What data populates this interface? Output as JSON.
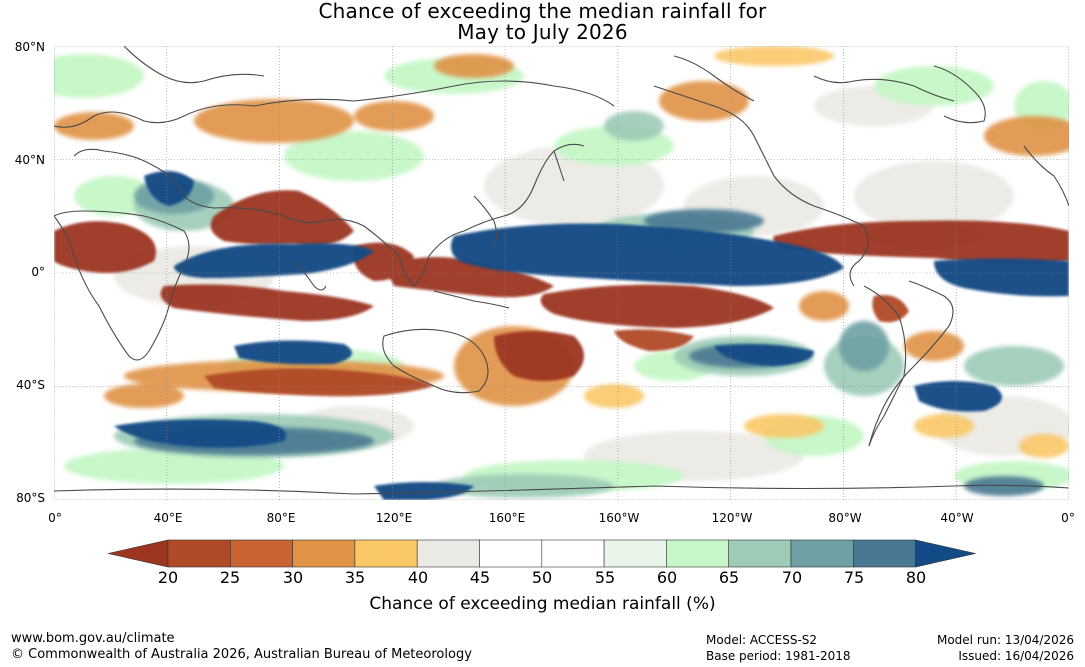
{
  "title": {
    "line1": "Chance of exceeding the median rainfall for",
    "line2": "May to July 2026"
  },
  "map": {
    "lat_labels": [
      "80°N",
      "40°N",
      "0°",
      "40°S",
      "80°S"
    ],
    "lon_labels": [
      "0°",
      "40°E",
      "80°E",
      "120°E",
      "160°E",
      "160°W",
      "120°W",
      "80°W",
      "40°W",
      "0°"
    ]
  },
  "legend": {
    "ticks": [
      "20",
      "25",
      "30",
      "35",
      "40",
      "45",
      "50",
      "55",
      "60",
      "65",
      "70",
      "75",
      "80"
    ],
    "colors": [
      "#9c3620",
      "#b04a27",
      "#c96432",
      "#e09245",
      "#fac867",
      "#ebe9e4",
      "#ffffff",
      "#ffffff",
      "#e8f5e8",
      "#c6f7c8",
      "#9ccbb6",
      "#6ea0a4",
      "#487892",
      "#134b86"
    ],
    "title": "Chance of exceeding median rainfall (%)"
  },
  "footer": {
    "url": "www.bom.gov.au/climate",
    "copyright": "© Commonwealth of Australia 2026, Australian Bureau of Meteorology",
    "model": "Model: ACCESS-S2",
    "base_period": "Base period: 1981-2018",
    "model_run": "Model run: 13/04/2026",
    "issued": "Issued: 16/04/2026"
  }
}
